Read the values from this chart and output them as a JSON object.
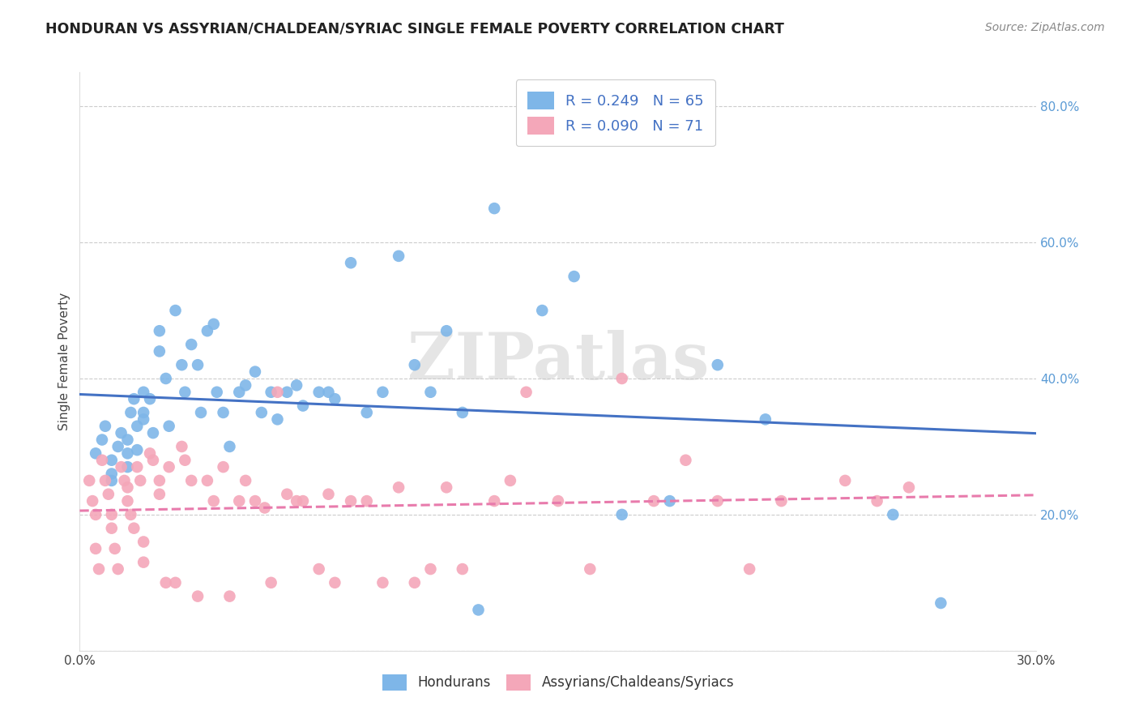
{
  "title": "HONDURAN VS ASSYRIAN/CHALDEAN/SYRIAC SINGLE FEMALE POVERTY CORRELATION CHART",
  "source": "Source: ZipAtlas.com",
  "ylabel": "Single Female Poverty",
  "xlim": [
    0.0,
    0.3
  ],
  "ylim": [
    0.0,
    0.85
  ],
  "xticks": [
    0.0,
    0.05,
    0.1,
    0.15,
    0.2,
    0.25,
    0.3
  ],
  "xtick_labels": [
    "0.0%",
    "",
    "",
    "",
    "",
    "",
    "30.0%"
  ],
  "yticks": [
    0.0,
    0.2,
    0.4,
    0.6,
    0.8
  ],
  "ytick_labels_right": [
    "",
    "20.0%",
    "40.0%",
    "60.0%",
    "80.0%"
  ],
  "legend_label1": "Hondurans",
  "legend_label2": "Assyrians/Chaldeans/Syriacs",
  "R1": 0.249,
  "N1": 65,
  "R2": 0.09,
  "N2": 71,
  "color_blue": "#7EB6E8",
  "color_pink": "#F4A7B9",
  "watermark": "ZIPatlas",
  "blue_scatter_x": [
    0.005,
    0.007,
    0.008,
    0.01,
    0.01,
    0.01,
    0.012,
    0.013,
    0.015,
    0.015,
    0.015,
    0.016,
    0.017,
    0.018,
    0.018,
    0.02,
    0.02,
    0.02,
    0.022,
    0.023,
    0.025,
    0.025,
    0.027,
    0.028,
    0.03,
    0.032,
    0.033,
    0.035,
    0.037,
    0.038,
    0.04,
    0.042,
    0.043,
    0.045,
    0.047,
    0.05,
    0.052,
    0.055,
    0.057,
    0.06,
    0.062,
    0.065,
    0.068,
    0.07,
    0.075,
    0.078,
    0.08,
    0.085,
    0.09,
    0.095,
    0.1,
    0.105,
    0.11,
    0.115,
    0.12,
    0.125,
    0.13,
    0.145,
    0.155,
    0.17,
    0.185,
    0.2,
    0.215,
    0.255,
    0.27
  ],
  "blue_scatter_y": [
    0.29,
    0.31,
    0.33,
    0.25,
    0.26,
    0.28,
    0.3,
    0.32,
    0.27,
    0.29,
    0.31,
    0.35,
    0.37,
    0.33,
    0.295,
    0.35,
    0.38,
    0.34,
    0.37,
    0.32,
    0.44,
    0.47,
    0.4,
    0.33,
    0.5,
    0.42,
    0.38,
    0.45,
    0.42,
    0.35,
    0.47,
    0.48,
    0.38,
    0.35,
    0.3,
    0.38,
    0.39,
    0.41,
    0.35,
    0.38,
    0.34,
    0.38,
    0.39,
    0.36,
    0.38,
    0.38,
    0.37,
    0.57,
    0.35,
    0.38,
    0.58,
    0.42,
    0.38,
    0.47,
    0.35,
    0.06,
    0.65,
    0.5,
    0.55,
    0.2,
    0.22,
    0.42,
    0.34,
    0.2,
    0.07
  ],
  "pink_scatter_x": [
    0.003,
    0.004,
    0.005,
    0.005,
    0.006,
    0.007,
    0.008,
    0.009,
    0.01,
    0.01,
    0.011,
    0.012,
    0.013,
    0.014,
    0.015,
    0.015,
    0.016,
    0.017,
    0.018,
    0.019,
    0.02,
    0.02,
    0.022,
    0.023,
    0.025,
    0.025,
    0.027,
    0.028,
    0.03,
    0.032,
    0.033,
    0.035,
    0.037,
    0.04,
    0.042,
    0.045,
    0.047,
    0.05,
    0.052,
    0.055,
    0.058,
    0.06,
    0.062,
    0.065,
    0.068,
    0.07,
    0.075,
    0.078,
    0.08,
    0.085,
    0.09,
    0.095,
    0.1,
    0.105,
    0.11,
    0.115,
    0.12,
    0.13,
    0.135,
    0.14,
    0.15,
    0.16,
    0.17,
    0.18,
    0.19,
    0.2,
    0.21,
    0.22,
    0.24,
    0.25,
    0.26
  ],
  "pink_scatter_y": [
    0.25,
    0.22,
    0.2,
    0.15,
    0.12,
    0.28,
    0.25,
    0.23,
    0.2,
    0.18,
    0.15,
    0.12,
    0.27,
    0.25,
    0.24,
    0.22,
    0.2,
    0.18,
    0.27,
    0.25,
    0.16,
    0.13,
    0.29,
    0.28,
    0.25,
    0.23,
    0.1,
    0.27,
    0.1,
    0.3,
    0.28,
    0.25,
    0.08,
    0.25,
    0.22,
    0.27,
    0.08,
    0.22,
    0.25,
    0.22,
    0.21,
    0.1,
    0.38,
    0.23,
    0.22,
    0.22,
    0.12,
    0.23,
    0.1,
    0.22,
    0.22,
    0.1,
    0.24,
    0.1,
    0.12,
    0.24,
    0.12,
    0.22,
    0.25,
    0.38,
    0.22,
    0.12,
    0.4,
    0.22,
    0.28,
    0.22,
    0.12,
    0.22,
    0.25,
    0.22,
    0.24
  ]
}
